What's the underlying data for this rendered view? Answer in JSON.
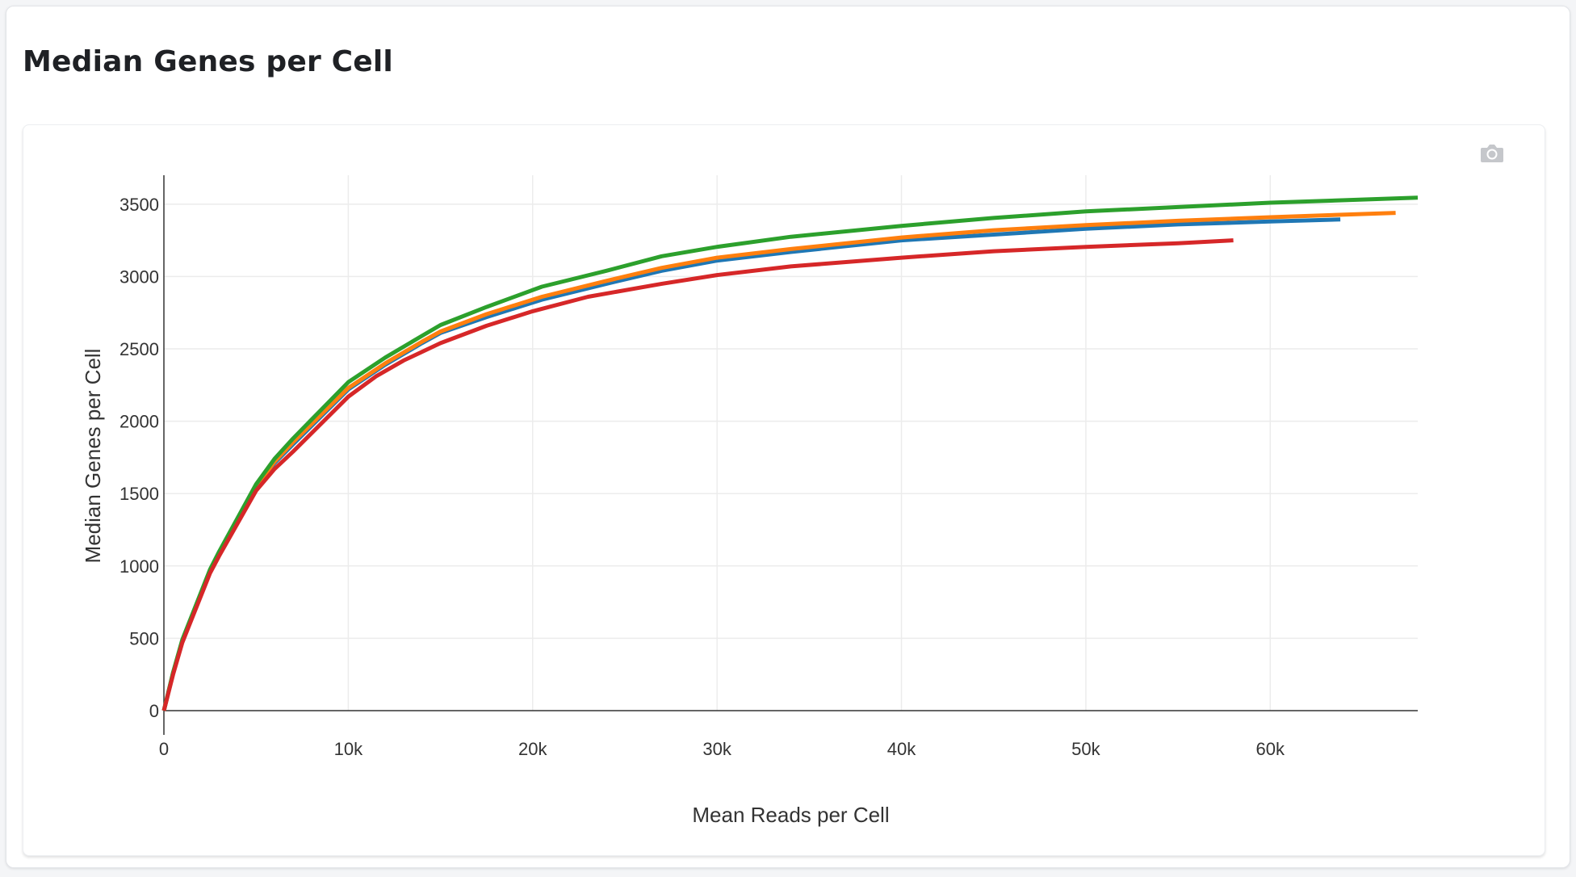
{
  "page": {
    "title": "Median Genes per Cell"
  },
  "toolbar": {
    "camera_icon": "camera-icon"
  },
  "chart_data": {
    "type": "line",
    "title": "",
    "xlabel": "Mean Reads per Cell",
    "ylabel": "Median Genes per Cell",
    "xlim": [
      0,
      68000
    ],
    "ylim": [
      0,
      3700
    ],
    "xticks": [
      0,
      10000,
      20000,
      30000,
      40000,
      50000,
      60000
    ],
    "xtick_labels": [
      "0",
      "10k",
      "20k",
      "30k",
      "40k",
      "50k",
      "60k"
    ],
    "yticks": [
      0,
      500,
      1000,
      1500,
      2000,
      2500,
      3000,
      3500
    ],
    "ytick_labels": [
      "0",
      "500",
      "1000",
      "1500",
      "2000",
      "2500",
      "3000",
      "3500"
    ],
    "grid": true,
    "legend": "none",
    "series": [
      {
        "color": "#1f77b4",
        "x": [
          0,
          500,
          1000,
          2500,
          3000,
          5000,
          6000,
          7000,
          10000,
          12000,
          14000,
          15000,
          17500,
          20500,
          24000,
          27000,
          30000,
          34000,
          40000,
          45000,
          50000,
          55000,
          60000,
          63800
        ],
        "y": [
          0,
          260,
          480,
          960,
          1080,
          1540,
          1710,
          1840,
          2220,
          2390,
          2540,
          2610,
          2720,
          2840,
          2950,
          3040,
          3110,
          3170,
          3250,
          3290,
          3330,
          3360,
          3380,
          3395
        ]
      },
      {
        "color": "#ff7f0e",
        "x": [
          0,
          500,
          1000,
          2500,
          3000,
          5000,
          6000,
          7000,
          10000,
          12000,
          14000,
          15000,
          17500,
          20500,
          24000,
          27000,
          30000,
          34000,
          40000,
          45000,
          50000,
          55000,
          60000,
          66800
        ],
        "y": [
          0,
          260,
          480,
          960,
          1085,
          1545,
          1720,
          1855,
          2230,
          2400,
          2550,
          2620,
          2740,
          2860,
          2970,
          3060,
          3130,
          3190,
          3270,
          3320,
          3355,
          3385,
          3410,
          3440
        ]
      },
      {
        "color": "#2ca02c",
        "x": [
          0,
          500,
          1000,
          2500,
          3000,
          5000,
          6000,
          7000,
          10000,
          12000,
          14000,
          15000,
          17500,
          20500,
          24000,
          27000,
          30000,
          34000,
          40000,
          45000,
          50000,
          55000,
          60000,
          68000
        ],
        "y": [
          0,
          265,
          490,
          975,
          1100,
          1565,
          1740,
          1880,
          2270,
          2440,
          2590,
          2665,
          2790,
          2930,
          3040,
          3140,
          3205,
          3275,
          3350,
          3405,
          3450,
          3480,
          3510,
          3545
        ]
      },
      {
        "color": "#d62728",
        "x": [
          0,
          500,
          1000,
          2500,
          3000,
          5000,
          6000,
          7000,
          10000,
          11500,
          13000,
          15000,
          17500,
          20000,
          23000,
          27000,
          30000,
          34000,
          40000,
          45000,
          50000,
          55000,
          58000
        ],
        "y": [
          0,
          250,
          470,
          950,
          1070,
          1520,
          1670,
          1790,
          2170,
          2310,
          2420,
          2540,
          2660,
          2760,
          2860,
          2950,
          3010,
          3070,
          3130,
          3175,
          3205,
          3230,
          3250
        ]
      }
    ]
  }
}
